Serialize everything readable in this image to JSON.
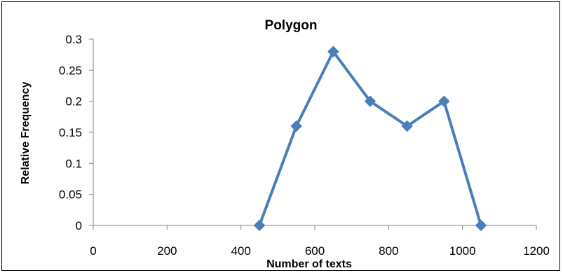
{
  "chart_data": {
    "type": "line",
    "title": "Polygon",
    "xlabel": "Number of texts",
    "ylabel": "Relative Frequency",
    "xlim": [
      0,
      1200
    ],
    "ylim": [
      0,
      0.3
    ],
    "x_ticks": [
      0,
      200,
      400,
      600,
      800,
      1000,
      1200
    ],
    "y_ticks": [
      "0",
      "0.05",
      "0.1",
      "0.15",
      "0.2",
      "0.25",
      "0.3"
    ],
    "grid": false,
    "legend": "none",
    "marker": "diamond",
    "color": "#4A7EBB",
    "series": [
      {
        "x": [
          450,
          550,
          650,
          750,
          850,
          950,
          1050
        ],
        "y": [
          0,
          0.16,
          0.28,
          0.2,
          0.16,
          0.2,
          0
        ]
      }
    ]
  }
}
